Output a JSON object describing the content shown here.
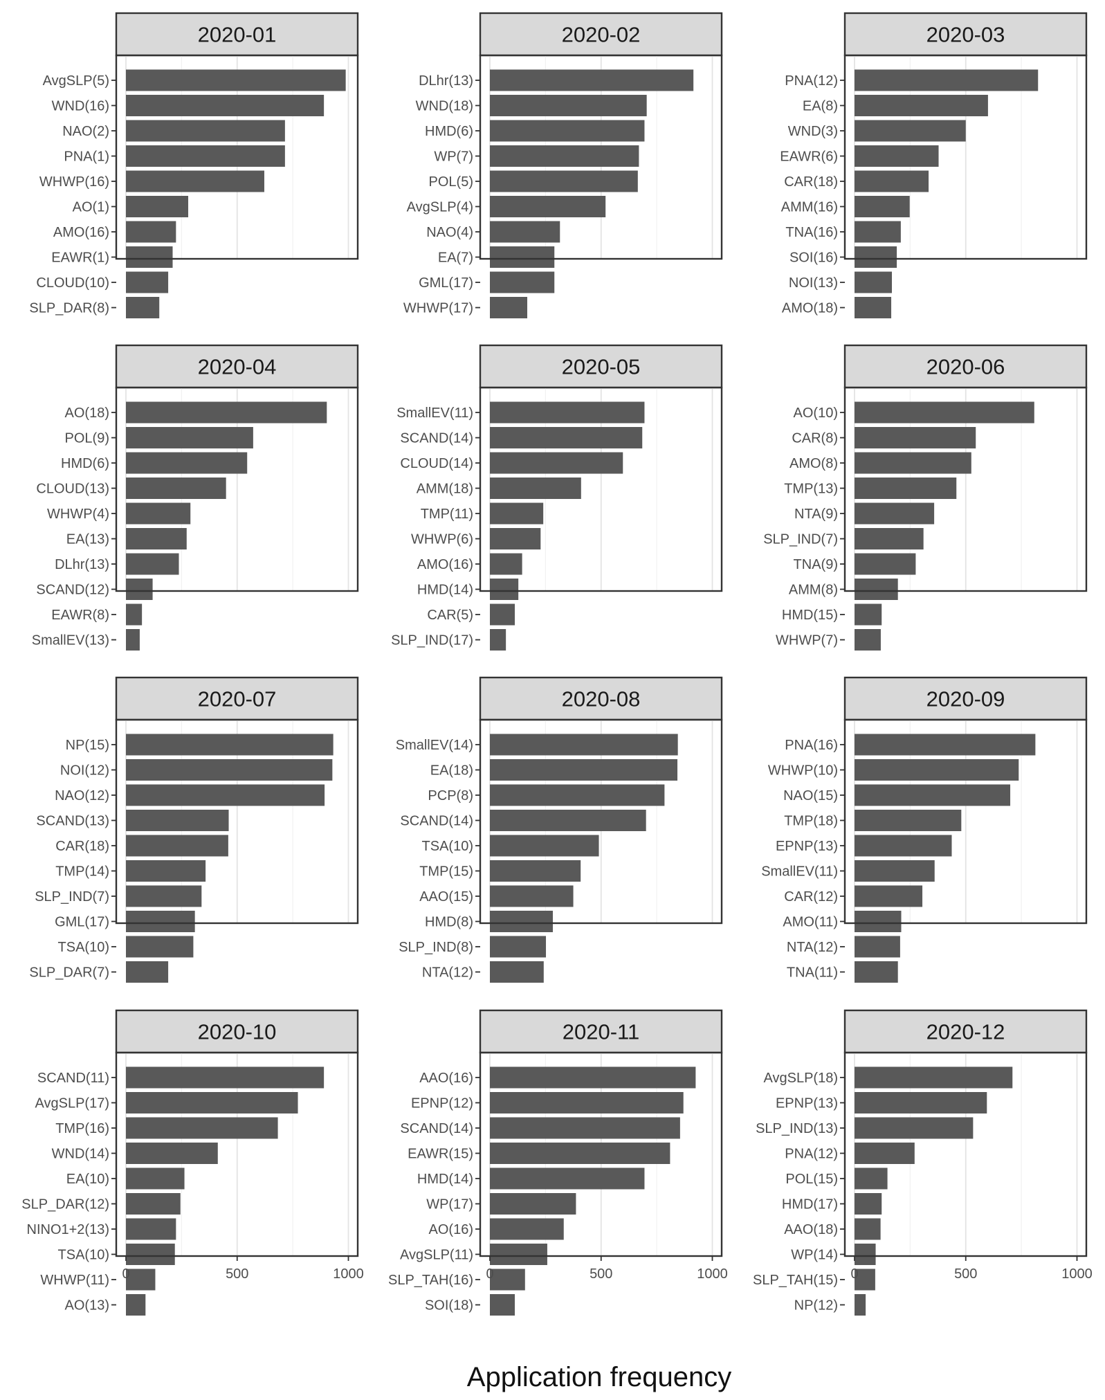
{
  "chart_data": {
    "type": "bar",
    "orientation": "horizontal",
    "facet_layout": "3 columns x 4 rows",
    "xlabel": "Application frequency",
    "xlim": [
      0,
      1000
    ],
    "x_ticks": [
      "0",
      "500",
      "1000"
    ],
    "grid": true,
    "bar_color": "#595959",
    "strip_color": "#d9d9d9",
    "panels": [
      {
        "title": "2020-01",
        "categories": [
          "AvgSLP(5)",
          "WND(16)",
          "NAO(2)",
          "PNA(1)",
          "WHWP(16)",
          "AO(1)",
          "AMO(16)",
          "EAWR(1)",
          "CLOUD(10)",
          "SLP_DAR(8)"
        ],
        "values": [
          988,
          890,
          715,
          715,
          622,
          280,
          225,
          210,
          190,
          150
        ]
      },
      {
        "title": "2020-02",
        "categories": [
          "DLhr(13)",
          "WND(18)",
          "HMD(6)",
          "WP(7)",
          "POL(5)",
          "AvgSLP(4)",
          "NAO(4)",
          "EA(7)",
          "GML(17)",
          "WHWP(17)"
        ],
        "values": [
          915,
          705,
          695,
          670,
          665,
          520,
          315,
          290,
          290,
          168
        ]
      },
      {
        "title": "2020-03",
        "categories": [
          "PNA(12)",
          "EA(8)",
          "WND(3)",
          "EAWR(6)",
          "CAR(18)",
          "AMM(16)",
          "TNA(16)",
          "SOI(16)",
          "NOI(13)",
          "AMO(18)"
        ],
        "values": [
          825,
          600,
          500,
          378,
          333,
          248,
          208,
          190,
          168,
          165
        ]
      },
      {
        "title": "2020-04",
        "categories": [
          "AO(18)",
          "POL(9)",
          "HMD(6)",
          "CLOUD(13)",
          "WHWP(4)",
          "EA(13)",
          "DLhr(13)",
          "SCAND(12)",
          "EAWR(8)",
          "SmallEV(13)"
        ],
        "values": [
          903,
          572,
          545,
          450,
          290,
          273,
          238,
          120,
          72,
          62
        ]
      },
      {
        "title": "2020-05",
        "categories": [
          "SmallEV(11)",
          "SCAND(14)",
          "CLOUD(14)",
          "AMM(18)",
          "TMP(11)",
          "WHWP(6)",
          "AMO(16)",
          "HMD(14)",
          "CAR(5)",
          "SLP_IND(17)"
        ],
        "values": [
          695,
          685,
          598,
          410,
          240,
          228,
          145,
          128,
          112,
          72
        ]
      },
      {
        "title": "2020-06",
        "categories": [
          "AO(10)",
          "CAR(8)",
          "AMO(8)",
          "TMP(13)",
          "NTA(9)",
          "SLP_IND(7)",
          "TNA(9)",
          "AMM(8)",
          "HMD(15)",
          "WHWP(7)"
        ],
        "values": [
          808,
          545,
          525,
          458,
          358,
          310,
          275,
          195,
          122,
          118
        ]
      },
      {
        "title": "2020-07",
        "categories": [
          "NP(15)",
          "NOI(12)",
          "NAO(12)",
          "SCAND(13)",
          "CAR(18)",
          "TMP(14)",
          "SLP_IND(7)",
          "GML(17)",
          "TSA(10)",
          "SLP_DAR(7)"
        ],
        "values": [
          932,
          928,
          893,
          462,
          460,
          358,
          340,
          310,
          303,
          190
        ]
      },
      {
        "title": "2020-08",
        "categories": [
          "SmallEV(14)",
          "EA(18)",
          "PCP(8)",
          "SCAND(14)",
          "TSA(10)",
          "TMP(15)",
          "AAO(15)",
          "HMD(8)",
          "SLP_IND(8)",
          "NTA(12)"
        ],
        "values": [
          845,
          843,
          785,
          702,
          490,
          408,
          375,
          283,
          252,
          242
        ]
      },
      {
        "title": "2020-09",
        "categories": [
          "PNA(16)",
          "WHWP(10)",
          "NAO(15)",
          "TMP(18)",
          "EPNP(13)",
          "SmallEV(11)",
          "CAR(12)",
          "AMO(11)",
          "NTA(12)",
          "TNA(11)"
        ],
        "values": [
          813,
          738,
          700,
          480,
          437,
          360,
          305,
          210,
          205,
          195
        ]
      },
      {
        "title": "2020-10",
        "categories": [
          "SCAND(11)",
          "AvgSLP(17)",
          "TMP(16)",
          "WND(14)",
          "EA(10)",
          "SLP_DAR(12)",
          "NINO1+2(13)",
          "TSA(10)",
          "WHWP(11)",
          "AO(13)"
        ],
        "values": [
          890,
          773,
          683,
          413,
          263,
          245,
          225,
          220,
          132,
          88
        ]
      },
      {
        "title": "2020-11",
        "categories": [
          "AAO(16)",
          "EPNP(12)",
          "SCAND(14)",
          "EAWR(15)",
          "HMD(14)",
          "WP(17)",
          "AO(16)",
          "AvgSLP(11)",
          "SLP_TAH(16)",
          "SOI(18)"
        ],
        "values": [
          925,
          870,
          855,
          810,
          695,
          387,
          332,
          258,
          158,
          112
        ]
      },
      {
        "title": "2020-12",
        "categories": [
          "AvgSLP(18)",
          "EPNP(13)",
          "SLP_IND(13)",
          "PNA(12)",
          "POL(15)",
          "HMD(17)",
          "AAO(18)",
          "WP(14)",
          "SLP_TAH(15)",
          "NP(12)"
        ],
        "values": [
          710,
          595,
          533,
          270,
          148,
          122,
          117,
          95,
          93,
          50
        ]
      }
    ]
  }
}
